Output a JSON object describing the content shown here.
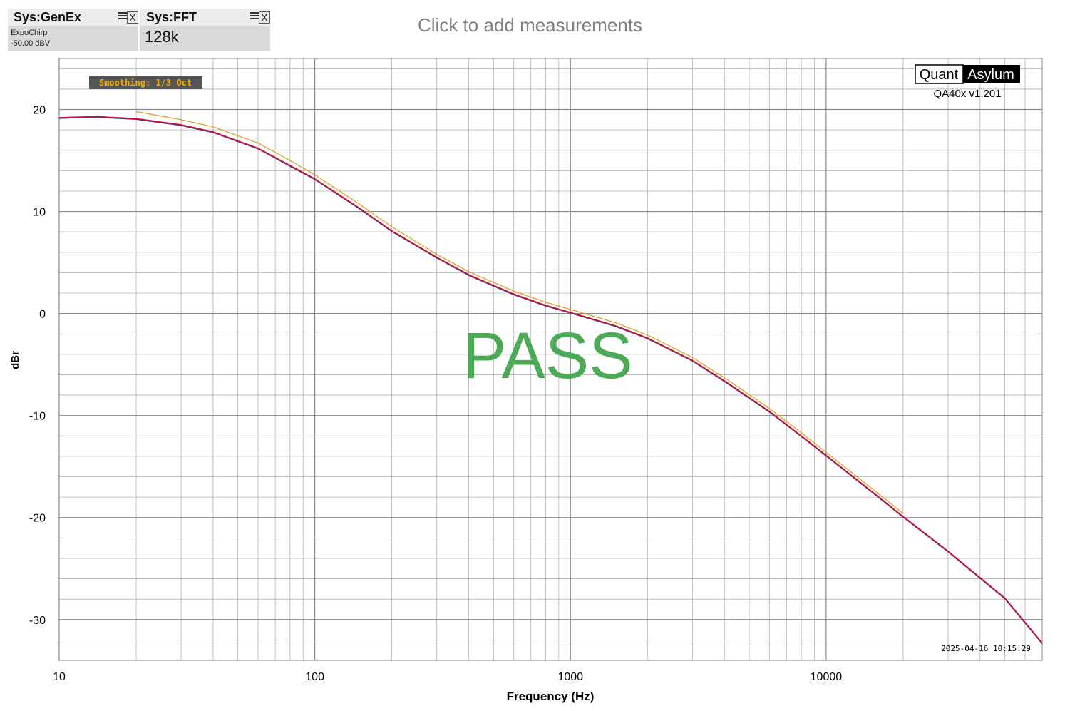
{
  "generator": {
    "title": "Sys:GenEx",
    "line1": "ExpoChirp",
    "line2": "-50.00 dBV"
  },
  "fft": {
    "title": "Sys:FFT",
    "value": "128k"
  },
  "header_hint": "Click to add measurements",
  "controls": {
    "close_label": "X"
  },
  "smoothing_label": "Smoothing: 1/3 Oct",
  "brand": {
    "quant": "Quant",
    "asylum": "Asylum",
    "version": "QA40x v1.201"
  },
  "timestamp": "2025-04-16 10:15:29",
  "pass_label": "PASS",
  "colors": {
    "measured": "#d0103a",
    "measured_under": "#2040a0",
    "reference": "#d9a016",
    "pass": "#4caa57",
    "grid": "#b0b0b0",
    "axis": "#000000"
  },
  "chart_data": {
    "type": "line",
    "xlabel": "Frequency (Hz)",
    "ylabel": "dBr",
    "x_scale": "log",
    "xlim": [
      10,
      70000
    ],
    "ylim": [
      -34,
      25
    ],
    "x_ticks": [
      10,
      100,
      1000,
      10000
    ],
    "x_tick_labels": [
      "10",
      "100",
      "1000",
      "10000"
    ],
    "y_ticks": [
      20,
      10,
      0,
      -10,
      -20,
      -30
    ],
    "y_tick_labels": [
      "20",
      "10",
      "0",
      "-10",
      "-20",
      "-30"
    ],
    "grid": true,
    "series": [
      {
        "x": [
          10,
          14,
          20,
          30,
          40,
          60,
          80,
          100,
          150,
          200,
          300,
          400,
          600,
          800,
          1000,
          1500,
          2000,
          3000,
          4000,
          6000,
          8000,
          10000,
          15000,
          20000,
          30000,
          50000,
          70000
        ],
        "y": [
          19.2,
          19.3,
          19.1,
          18.5,
          17.8,
          16.2,
          14.5,
          13.2,
          10.3,
          8.1,
          5.5,
          3.8,
          1.9,
          0.8,
          0.1,
          -1.2,
          -2.4,
          -4.6,
          -6.6,
          -9.6,
          -12.0,
          -13.9,
          -17.4,
          -19.9,
          -23.3,
          -27.9,
          -32.3
        ]
      },
      {
        "x": [
          20,
          30,
          40,
          60,
          80,
          100,
          150,
          200,
          300,
          400,
          600,
          800,
          1000,
          1500,
          2000,
          3000,
          4000,
          6000,
          8000,
          10000,
          15000,
          20000
        ],
        "y": [
          19.8,
          19.0,
          18.3,
          16.7,
          15.0,
          13.6,
          10.7,
          8.5,
          5.8,
          4.1,
          2.2,
          1.1,
          0.4,
          -0.9,
          -2.1,
          -4.3,
          -6.3,
          -9.3,
          -11.7,
          -13.6,
          -17.1,
          -19.6
        ]
      }
    ]
  }
}
